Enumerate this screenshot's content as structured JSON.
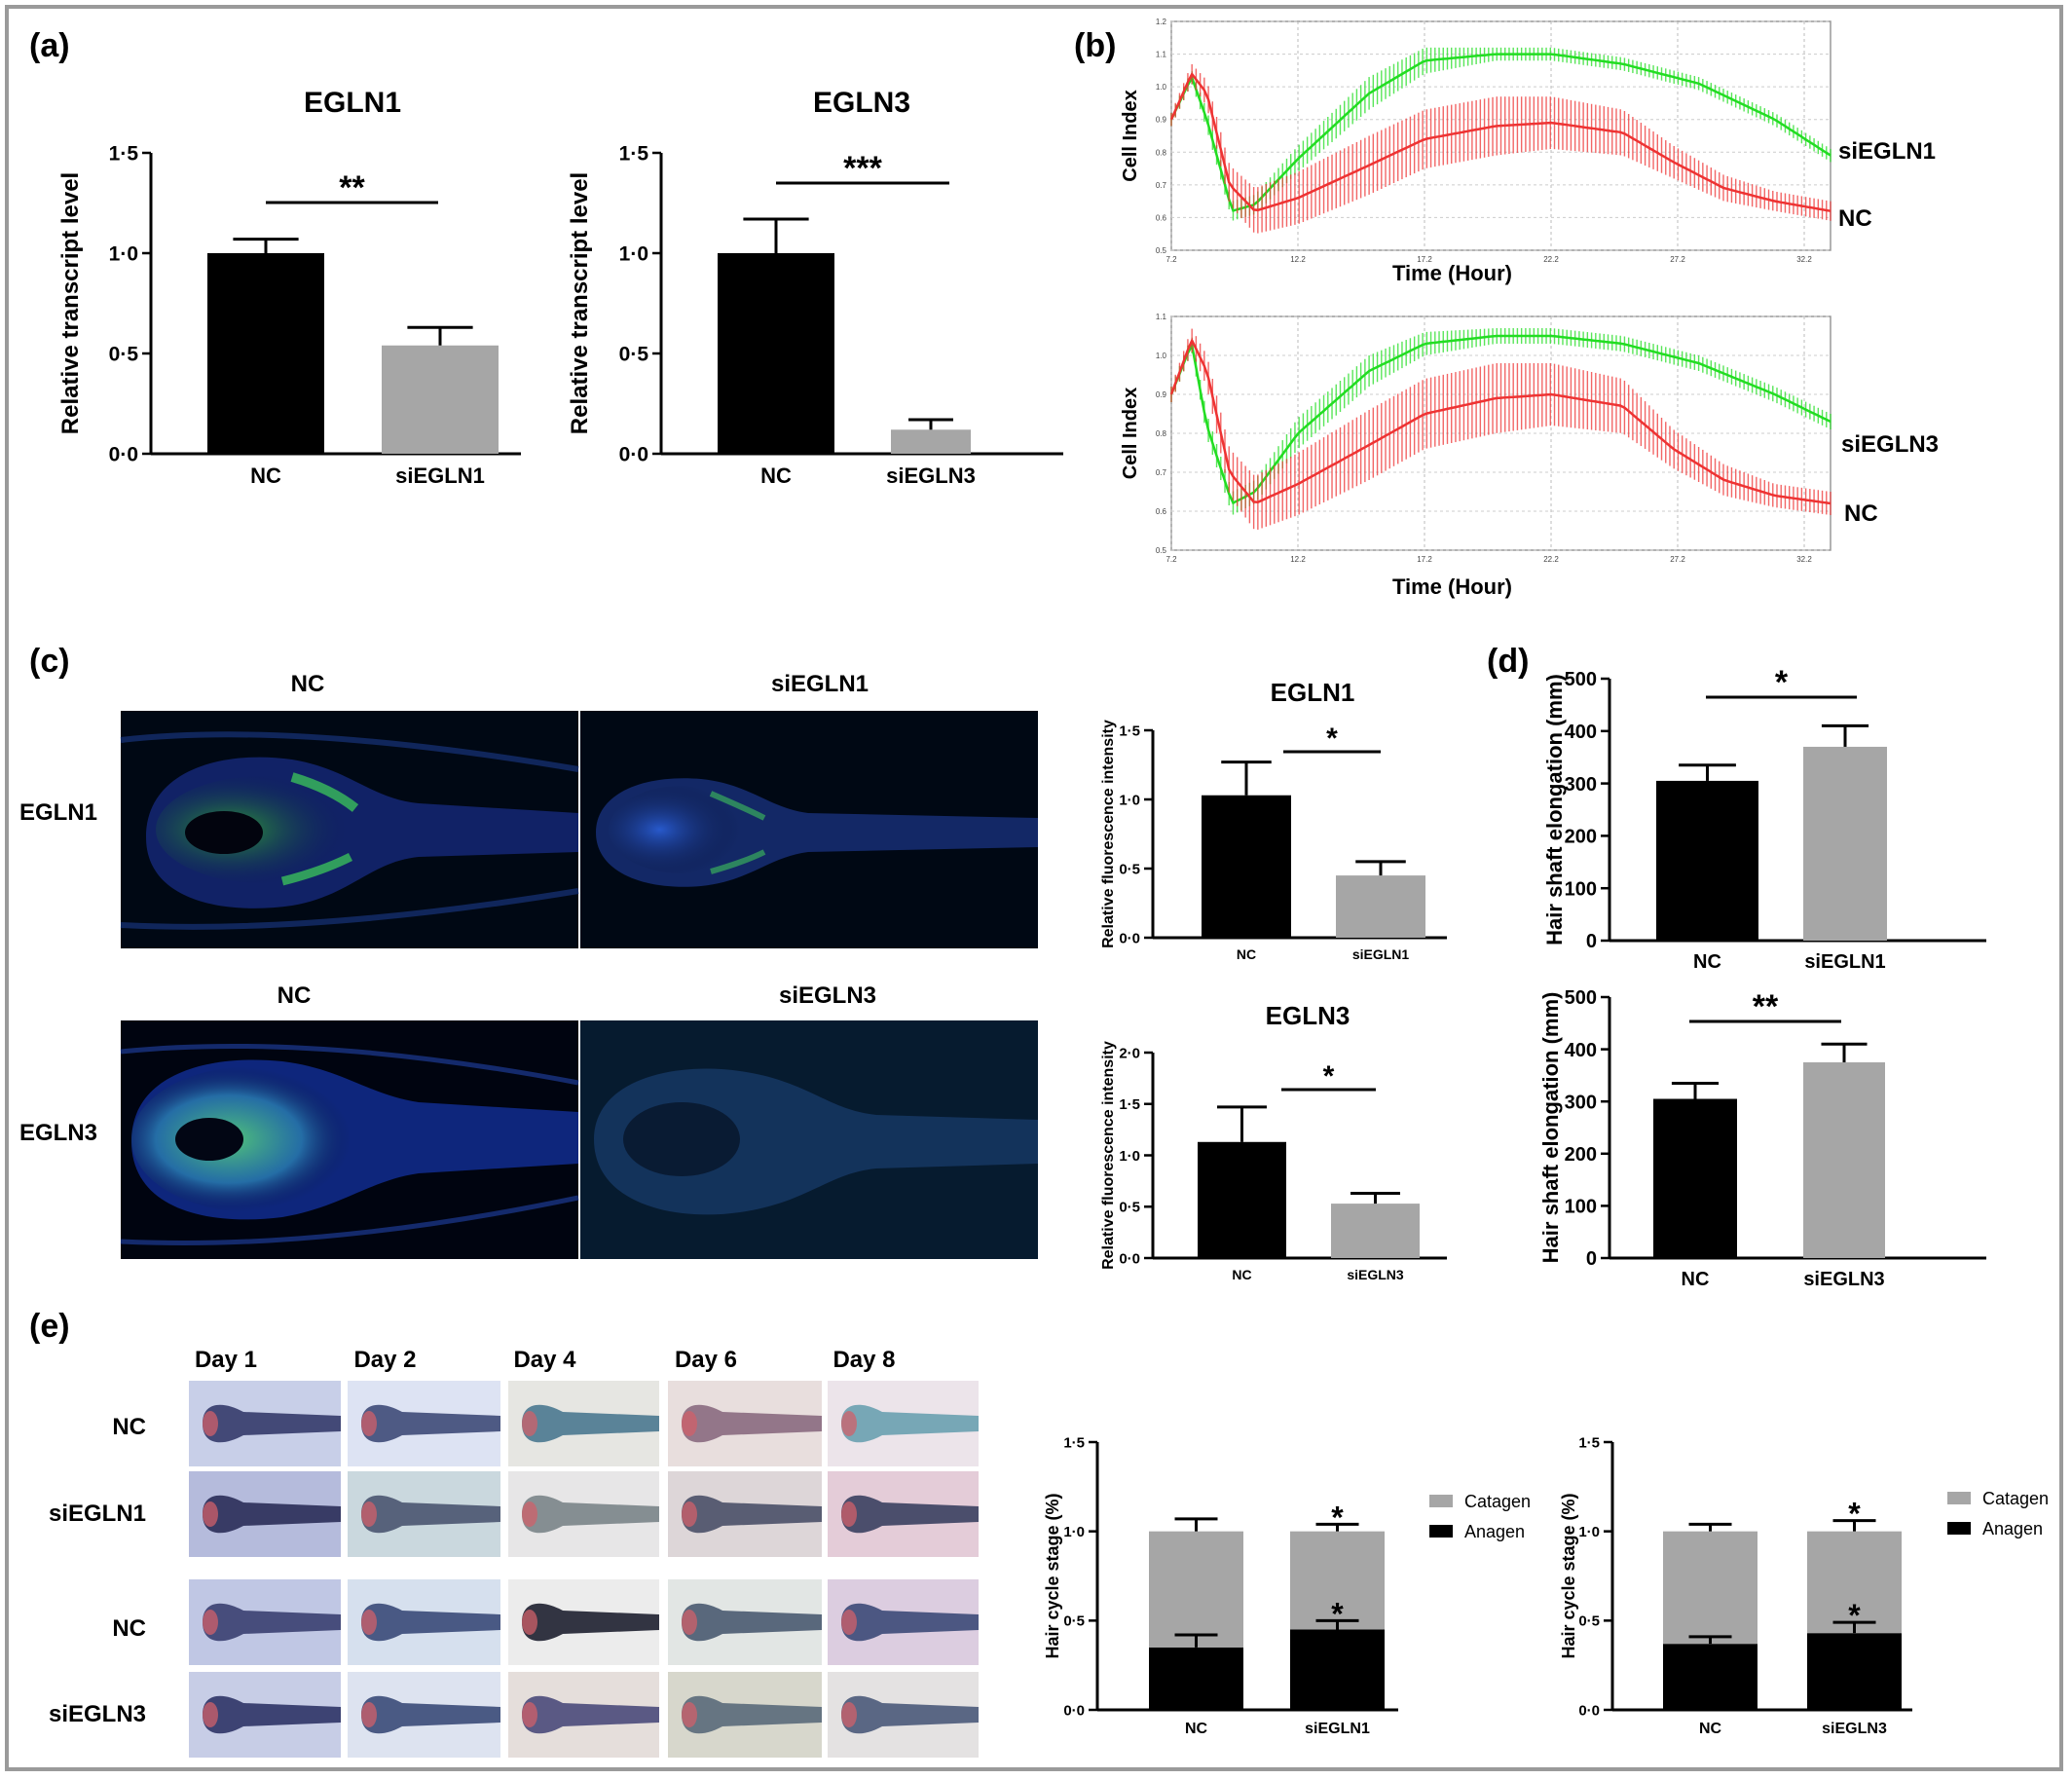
{
  "panel_letters": {
    "a": "(a)",
    "b": "(b)",
    "c": "(c)",
    "d": "(d)",
    "e": "(e)"
  },
  "colors": {
    "nc_bar": "#000000",
    "si_bar": "#a6a6a6",
    "si_curve": "#22dd22",
    "nc_curve": "#ee3333",
    "catagen": "#a6a6a6",
    "anagen": "#000000"
  },
  "panel_b": {
    "ylabel": "Cell Index",
    "xlabel": "Time (Hour)",
    "x_ticks": [
      "7.2",
      "12.2",
      "17.2",
      "22.2",
      "27.2",
      "32.2"
    ],
    "top_y_ticks": [
      "1.2",
      "1.1",
      "1.0",
      "0.9",
      "0.8",
      "0.7",
      "0.6",
      "0.5"
    ],
    "bottom_y_ticks": [
      "1.1",
      "1.0",
      "0.9",
      "0.8",
      "0.7",
      "0.6",
      "0.5"
    ],
    "top_label_si": "siEGLN1",
    "top_label_nc": "NC",
    "bottom_label_si": "siEGLN3",
    "bottom_label_nc": "NC"
  },
  "panel_c": {
    "col_nc": "NC",
    "col_si1": "siEGLN1",
    "col_si3": "siEGLN3",
    "row1": "EGLN1",
    "row2": "EGLN3"
  },
  "panel_e": {
    "days": [
      "Day 1",
      "Day 2",
      "Day 4",
      "Day 6",
      "Day 8"
    ],
    "rows": [
      "NC",
      "siEGLN1",
      "NC",
      "siEGLN3"
    ]
  },
  "chart_data": [
    {
      "id": "a1",
      "type": "bar",
      "title": "EGLN1",
      "ylabel": "Relative transcript level",
      "categories": [
        "NC",
        "siEGLN1"
      ],
      "values": [
        1.0,
        0.54
      ],
      "errors": [
        0.07,
        0.09
      ],
      "ylim": [
        0,
        1.5
      ],
      "yticks": [
        "0·0",
        "0·5",
        "1·0",
        "1·5"
      ],
      "significance": "**"
    },
    {
      "id": "a3",
      "type": "bar",
      "title": "EGLN3",
      "ylabel": "Relative transcript level",
      "categories": [
        "NC",
        "siEGLN3"
      ],
      "values": [
        1.0,
        0.12
      ],
      "errors": [
        0.17,
        0.05
      ],
      "ylim": [
        0,
        1.5
      ],
      "yticks": [
        "0·0",
        "0·5",
        "1·0",
        "1·5"
      ],
      "significance": "***"
    },
    {
      "id": "b1",
      "type": "line",
      "xlabel": "Time (Hour)",
      "ylabel": "Cell Index",
      "xlim": [
        7.2,
        33.2
      ],
      "ylim": [
        0.5,
        1.2
      ],
      "series": [
        {
          "name": "siEGLN1",
          "x": [
            7.2,
            8.0,
            8.6,
            9.6,
            10.5,
            12.2,
            15.0,
            17.2,
            20.0,
            22.2,
            25.0,
            28.0,
            31.0,
            33.2
          ],
          "y": [
            0.9,
            1.03,
            0.9,
            0.62,
            0.64,
            0.78,
            0.98,
            1.08,
            1.1,
            1.1,
            1.07,
            1.01,
            0.9,
            0.79
          ],
          "err": [
            0.02,
            0.02,
            0.03,
            0.03,
            0.03,
            0.04,
            0.05,
            0.04,
            0.02,
            0.02,
            0.02,
            0.02,
            0.02,
            0.02
          ]
        },
        {
          "name": "NC",
          "x": [
            7.2,
            8.0,
            8.6,
            9.5,
            10.5,
            12.2,
            15.0,
            17.2,
            20.0,
            22.2,
            25.0,
            27.0,
            29.0,
            31.0,
            33.2
          ],
          "y": [
            0.9,
            1.04,
            0.98,
            0.7,
            0.62,
            0.66,
            0.76,
            0.84,
            0.88,
            0.89,
            0.86,
            0.77,
            0.69,
            0.65,
            0.62
          ],
          "err": [
            0.02,
            0.03,
            0.04,
            0.06,
            0.07,
            0.08,
            0.09,
            0.09,
            0.09,
            0.08,
            0.07,
            0.05,
            0.04,
            0.03,
            0.03
          ]
        }
      ]
    },
    {
      "id": "b3",
      "type": "line",
      "xlabel": "Time (Hour)",
      "ylabel": "Cell Index",
      "xlim": [
        7.2,
        33.2
      ],
      "ylim": [
        0.5,
        1.1
      ],
      "series": [
        {
          "name": "siEGLN3",
          "x": [
            7.2,
            8.0,
            8.6,
            9.6,
            10.5,
            12.2,
            15.0,
            17.2,
            20.0,
            22.2,
            25.0,
            28.0,
            31.0,
            33.2
          ],
          "y": [
            0.9,
            1.03,
            0.82,
            0.62,
            0.65,
            0.8,
            0.96,
            1.03,
            1.05,
            1.05,
            1.03,
            0.98,
            0.9,
            0.83
          ],
          "err": [
            0.02,
            0.02,
            0.03,
            0.03,
            0.03,
            0.04,
            0.04,
            0.03,
            0.02,
            0.02,
            0.02,
            0.02,
            0.02,
            0.02
          ]
        },
        {
          "name": "NC",
          "x": [
            7.2,
            8.0,
            8.6,
            9.5,
            10.5,
            12.2,
            15.0,
            17.2,
            20.0,
            22.2,
            25.0,
            27.0,
            29.0,
            31.0,
            33.2
          ],
          "y": [
            0.9,
            1.04,
            0.96,
            0.7,
            0.62,
            0.67,
            0.77,
            0.85,
            0.89,
            0.9,
            0.87,
            0.76,
            0.68,
            0.64,
            0.62
          ],
          "err": [
            0.02,
            0.03,
            0.04,
            0.06,
            0.07,
            0.08,
            0.09,
            0.09,
            0.09,
            0.08,
            0.07,
            0.05,
            0.04,
            0.03,
            0.03
          ]
        }
      ]
    },
    {
      "id": "c1",
      "type": "bar",
      "title": "EGLN1",
      "ylabel": "Relative fluorescence intensity",
      "categories": [
        "NC",
        "siEGLN1"
      ],
      "values": [
        1.03,
        0.45
      ],
      "errors": [
        0.24,
        0.1
      ],
      "ylim": [
        0,
        1.5
      ],
      "yticks": [
        "0·0",
        "0·5",
        "1·0",
        "1·5"
      ],
      "significance": "*"
    },
    {
      "id": "c3",
      "type": "bar",
      "title": "EGLN3",
      "ylabel": "Relative fluorescence intensity",
      "categories": [
        "NC",
        "siEGLN3"
      ],
      "values": [
        1.13,
        0.53
      ],
      "errors": [
        0.34,
        0.1
      ],
      "ylim": [
        0,
        2.0
      ],
      "yticks": [
        "0·0",
        "0·5",
        "1·0",
        "1·5",
        "2·0"
      ],
      "significance": "*"
    },
    {
      "id": "d1",
      "type": "bar",
      "title": "",
      "ylabel": "Hair shaft elongation (mm)",
      "categories": [
        "NC",
        "siEGLN1"
      ],
      "values": [
        305,
        370
      ],
      "errors": [
        30,
        40
      ],
      "ylim": [
        0,
        500
      ],
      "yticks": [
        "0",
        "100",
        "200",
        "300",
        "400",
        "500"
      ],
      "significance": "*"
    },
    {
      "id": "d3",
      "type": "bar",
      "title": "",
      "ylabel": "Hair shaft elongation (mm)",
      "categories": [
        "NC",
        "siEGLN3"
      ],
      "values": [
        305,
        375
      ],
      "errors": [
        30,
        35
      ],
      "ylim": [
        0,
        500
      ],
      "yticks": [
        "0",
        "100",
        "200",
        "300",
        "400",
        "500"
      ],
      "significance": "**"
    },
    {
      "id": "e1",
      "type": "bar",
      "stacked": true,
      "ylabel": "Hair cycle stage (%)",
      "categories": [
        "NC",
        "siEGLN1"
      ],
      "ylim": [
        0,
        1.5
      ],
      "yticks": [
        "0·0",
        "0·5",
        "1·0",
        "1·5"
      ],
      "series": [
        {
          "name": "Anagen",
          "values": [
            0.35,
            0.45
          ],
          "errors": [
            0.07,
            0.05
          ]
        },
        {
          "name": "Catagen",
          "values": [
            0.65,
            0.55
          ],
          "errors": [
            0.07,
            0.04
          ]
        }
      ],
      "stars": [
        "",
        "*"
      ]
    },
    {
      "id": "e3",
      "type": "bar",
      "stacked": true,
      "ylabel": "Hair cycle stage (%)",
      "categories": [
        "NC",
        "siEGLN3"
      ],
      "ylim": [
        0,
        1.5
      ],
      "yticks": [
        "0·0",
        "0·5",
        "1·0",
        "1·5"
      ],
      "series": [
        {
          "name": "Anagen",
          "values": [
            0.37,
            0.43
          ],
          "errors": [
            0.04,
            0.06
          ]
        },
        {
          "name": "Catagen",
          "values": [
            0.63,
            0.57
          ],
          "errors": [
            0.04,
            0.06
          ]
        }
      ],
      "stars": [
        "",
        "*"
      ]
    }
  ]
}
